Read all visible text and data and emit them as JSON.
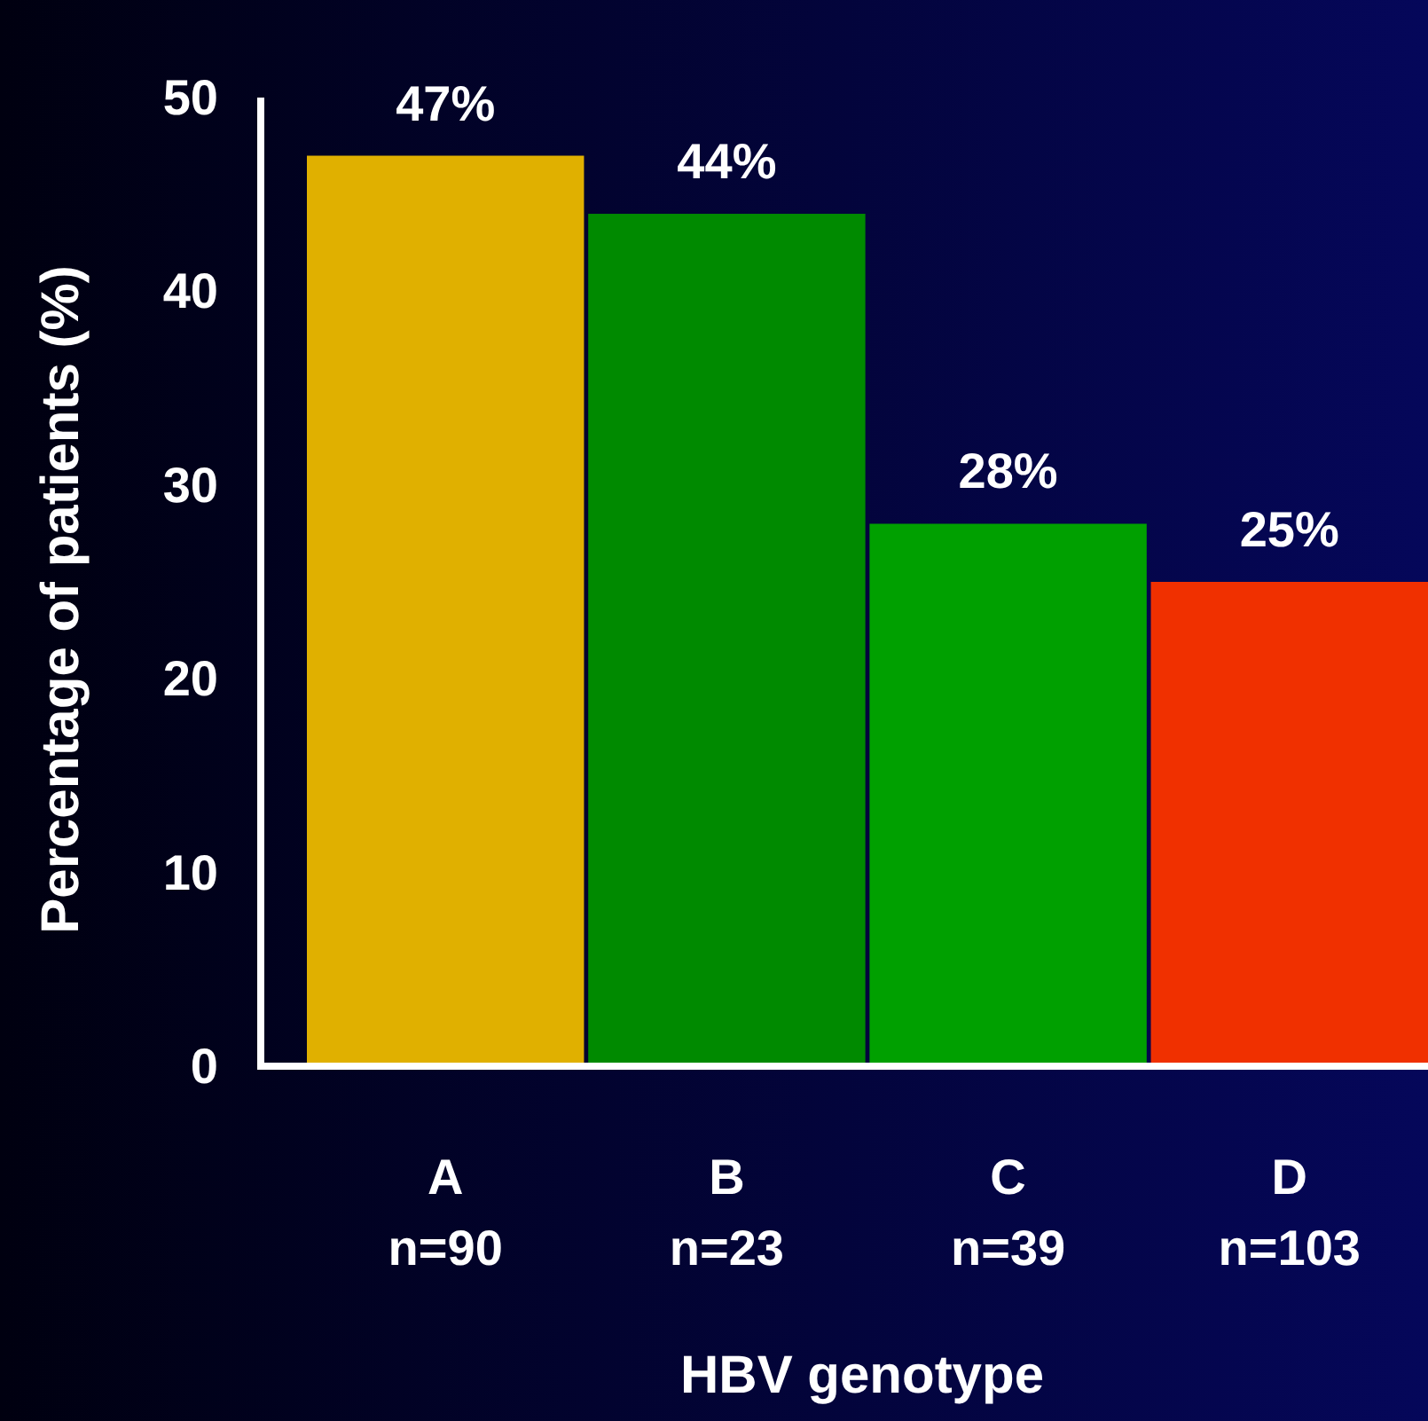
{
  "chart_data": {
    "type": "bar",
    "xlabel": "HBV genotype",
    "ylabel": "Percentage of patients (%)",
    "categories": [
      "A\nn=90",
      "B\nn=23",
      "C\nn=39",
      "D\nn=103"
    ],
    "values": [
      47,
      44,
      28,
      25
    ],
    "colors": [
      "#e0b000",
      "#008a00",
      "#00a000",
      "#f03000"
    ],
    "value_labels": [
      "47%",
      "44%",
      "28%",
      "25%"
    ],
    "ylim": [
      0,
      50
    ],
    "yticks": [
      0,
      10,
      20,
      30,
      40,
      50
    ],
    "grid": false
  }
}
